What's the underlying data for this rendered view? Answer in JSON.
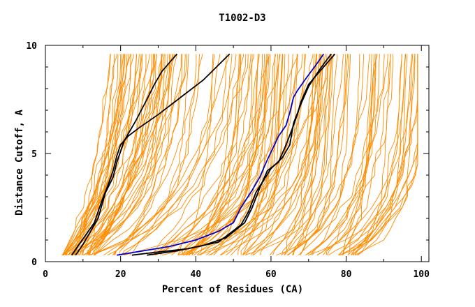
{
  "chart_data": {
    "type": "line",
    "title": "T1002-D3",
    "xlabel": "Percent of Residues (CA)",
    "ylabel": "Distance Cutoff, A",
    "xlim": [
      0,
      102
    ],
    "ylim": [
      0,
      10
    ],
    "x_ticks": [
      0,
      20,
      40,
      60,
      80,
      100
    ],
    "x_minor_ticks": [
      10,
      30,
      50,
      70,
      90
    ],
    "y_ticks": [
      0,
      5,
      10
    ],
    "y_minor_ticks": [
      1,
      2,
      3,
      4,
      6,
      7,
      8,
      9
    ],
    "y_grid": [
      0.3,
      0.5,
      1,
      1.5,
      2,
      2.5,
      3,
      3.5,
      4,
      4.5,
      5,
      5.5,
      6,
      6.5,
      7,
      7.5,
      8,
      8.5,
      9,
      9.5
    ],
    "grid": false,
    "colors": {
      "background_models": "#ff8c00",
      "highlight_blue": "#0000cc",
      "highlight_black": "#000000",
      "axes": "#000000"
    },
    "background_model_count": 150,
    "series": [
      {
        "name": "black-1",
        "color": "#000000",
        "x": [
          8,
          10,
          12,
          14,
          16,
          18,
          19,
          21,
          24,
          27,
          29,
          31,
          33,
          35
        ],
        "values": [
          0.3,
          0.8,
          1.4,
          2.0,
          3.2,
          3.9,
          4.6,
          5.6,
          6.5,
          7.5,
          8.2,
          8.8,
          9.2,
          9.6
        ]
      },
      {
        "name": "black-2",
        "color": "#000000",
        "x": [
          7,
          11,
          13,
          15,
          17,
          18,
          19,
          20,
          22,
          25,
          30,
          36,
          42,
          49
        ],
        "values": [
          0.3,
          1.3,
          1.8,
          2.8,
          3.7,
          4.2,
          4.9,
          5.4,
          5.8,
          6.2,
          6.8,
          7.6,
          8.4,
          9.6
        ]
      },
      {
        "name": "black-3",
        "color": "#000000",
        "x": [
          23,
          30,
          38,
          46,
          52,
          54,
          56,
          60,
          63,
          65,
          66,
          68,
          70,
          73,
          76
        ],
        "values": [
          0.3,
          0.45,
          0.6,
          0.9,
          1.7,
          2.3,
          3.2,
          4.3,
          4.8,
          5.4,
          6.4,
          7.3,
          8.1,
          8.9,
          9.6
        ]
      },
      {
        "name": "black-4",
        "color": "#000000",
        "x": [
          27,
          35,
          42,
          48,
          53,
          55,
          57,
          59,
          62,
          64,
          66,
          67,
          68,
          70,
          74,
          77
        ],
        "values": [
          0.3,
          0.5,
          0.75,
          1.1,
          1.8,
          2.5,
          3.4,
          4.2,
          4.6,
          5.4,
          6.3,
          6.8,
          7.4,
          8.2,
          9.0,
          9.6
        ]
      },
      {
        "name": "blue",
        "color": "#0000cc",
        "x": [
          19,
          26,
          33,
          40,
          46,
          50,
          52,
          55,
          57,
          59,
          62,
          64,
          65,
          66,
          67,
          69,
          72,
          74
        ],
        "values": [
          0.3,
          0.5,
          0.7,
          1.0,
          1.4,
          1.8,
          2.5,
          3.3,
          3.9,
          4.7,
          5.8,
          6.3,
          6.9,
          7.6,
          7.9,
          8.4,
          9.1,
          9.6
        ]
      }
    ]
  }
}
